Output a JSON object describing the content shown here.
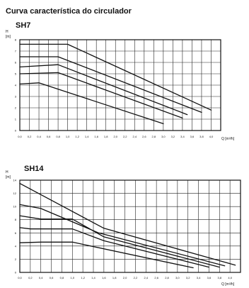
{
  "page": {
    "title": "Curva característica do circulador"
  },
  "chart_data": [
    {
      "type": "line",
      "title": "SH7",
      "ylabel": "H",
      "yunit": "[m]",
      "xlabel": "Q [m³/h]",
      "xlim": [
        0,
        4.2
      ],
      "ylim": [
        0,
        8
      ],
      "grid": true,
      "xticks": [
        "0,0",
        "0,2",
        "0,4",
        "0,6",
        "0,8",
        "1,0",
        "1,2",
        "1,4",
        "1,6",
        "1,8",
        "2,0",
        "2,2",
        "2,4",
        "2,6",
        "2,8",
        "3,0",
        "3,2",
        "3,4",
        "3,6",
        "3,8",
        "4,0"
      ],
      "yticks": [
        "0",
        "1",
        "2",
        "3",
        "4",
        "5",
        "6",
        "7",
        "8"
      ],
      "series": [
        {
          "x": [
            0.0,
            1.0,
            4.0
          ],
          "values": [
            7.6,
            7.6,
            1.8
          ]
        },
        {
          "x": [
            0.0,
            0.8,
            3.8
          ],
          "values": [
            6.5,
            6.5,
            1.6
          ]
        },
        {
          "x": [
            0.0,
            0.8,
            3.5
          ],
          "values": [
            5.6,
            5.8,
            1.4
          ]
        },
        {
          "x": [
            0.0,
            0.8,
            3.4
          ],
          "values": [
            5.0,
            5.1,
            1.1
          ]
        },
        {
          "x": [
            0.0,
            0.4,
            3.0
          ],
          "values": [
            4.1,
            4.2,
            0.6
          ]
        }
      ]
    },
    {
      "type": "line",
      "title": "SH14",
      "ylabel": "H",
      "yunit": "[m]",
      "xlabel": "Q [m³/h]",
      "xlim": [
        0,
        4.2
      ],
      "ylim": [
        0,
        14
      ],
      "grid": true,
      "xticks": [
        "0,0",
        "0,2",
        "0,4",
        "0,6",
        "0,8",
        "1,0",
        "1,2",
        "1,4",
        "1,6",
        "1,8",
        "2,0",
        "2,2",
        "2,4",
        "2,6",
        "2,8",
        "3,0",
        "3,2",
        "3,4",
        "3,6",
        "3,8",
        "4,0"
      ],
      "yticks": [
        "0",
        "2",
        "4",
        "6",
        "8",
        "10",
        "12",
        "14"
      ],
      "series": [
        {
          "x": [
            0.0,
            1.6,
            4.1
          ],
          "values": [
            13.5,
            6.7,
            1.1
          ]
        },
        {
          "x": [
            0.0,
            0.4,
            1.5,
            3.9
          ],
          "values": [
            10.3,
            9.7,
            6.0,
            1.0
          ]
        },
        {
          "x": [
            0.0,
            0.4,
            1.0,
            1.6,
            3.8
          ],
          "values": [
            8.6,
            8.1,
            8.1,
            5.4,
            0.8
          ]
        },
        {
          "x": [
            0.0,
            0.2,
            1.0,
            1.6,
            3.6
          ],
          "values": [
            6.8,
            6.6,
            6.6,
            4.8,
            0.8
          ]
        },
        {
          "x": [
            0.0,
            0.4,
            1.0,
            3.3
          ],
          "values": [
            4.5,
            4.6,
            4.6,
            0.7
          ]
        }
      ]
    }
  ]
}
